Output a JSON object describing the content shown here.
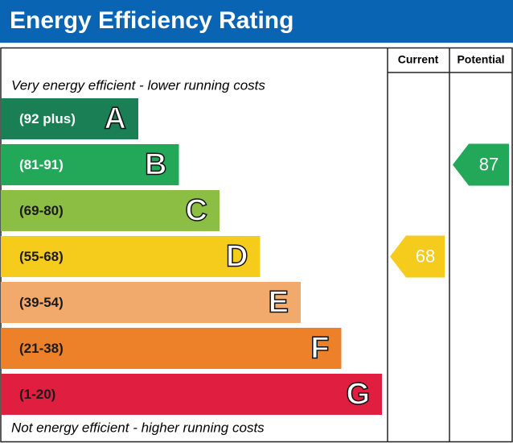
{
  "title": "Energy Efficiency Rating",
  "headers": {
    "current": "Current",
    "potential": "Potential"
  },
  "notes": {
    "top": "Very energy efficient - lower running costs",
    "bottom": "Not energy efficient - higher running costs"
  },
  "bands": [
    {
      "range": "(92 plus)",
      "letter": "A",
      "color": "#1a7f55",
      "text_color": "#ffffff"
    },
    {
      "range": "(81-91)",
      "letter": "B",
      "color": "#23a85a",
      "text_color": "#ffffff"
    },
    {
      "range": "(69-80)",
      "letter": "C",
      "color": "#8cbe43",
      "text_color": "#1a1a1a"
    },
    {
      "range": "(55-68)",
      "letter": "D",
      "color": "#f5cb1c",
      "text_color": "#1a1a1a"
    },
    {
      "range": "(39-54)",
      "letter": "E",
      "color": "#f2aa6c",
      "text_color": "#1a1a1a"
    },
    {
      "range": "(21-38)",
      "letter": "F",
      "color": "#ec8129",
      "text_color": "#1a1a1a"
    },
    {
      "range": "(1-20)",
      "letter": "G",
      "color": "#e01e3f",
      "text_color": "#1a1a1a"
    }
  ],
  "current": 68,
  "potential": 87
}
